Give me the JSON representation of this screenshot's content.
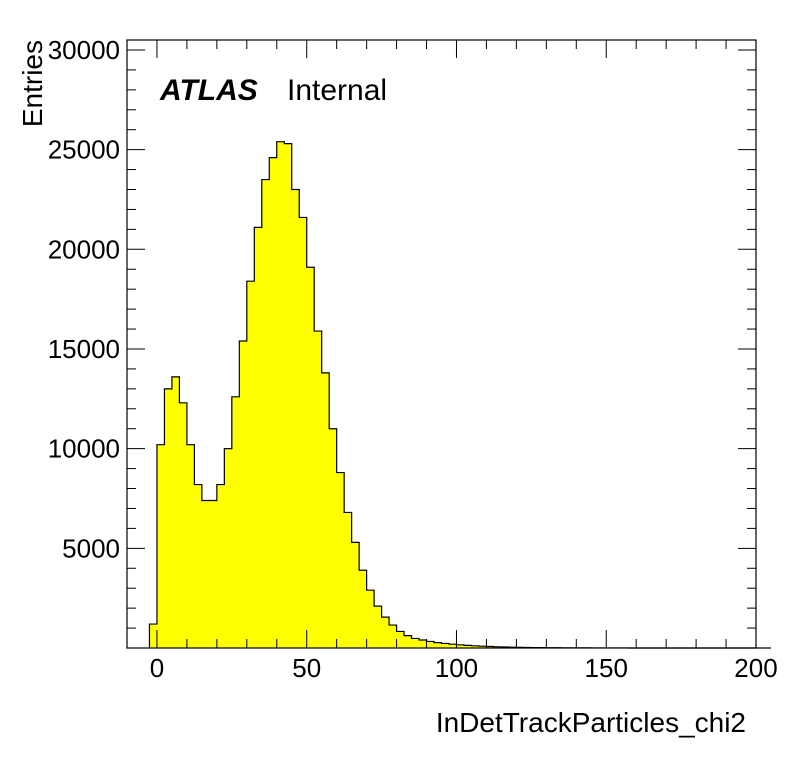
{
  "chart_data": {
    "type": "bar",
    "title": "",
    "xlabel": "InDetTrackParticles_chi2",
    "ylabel": "Entries",
    "annotation": {
      "experiment": "ATLAS",
      "status": "Internal"
    },
    "xlim": [
      -10,
      200
    ],
    "ylim": [
      0,
      30500
    ],
    "xticks": [
      0,
      50,
      100,
      150,
      200
    ],
    "yticks": [
      5000,
      10000,
      15000,
      20000,
      25000,
      30000
    ],
    "bin_width": 2.5,
    "bin_start": -2.5,
    "fill_color": "#ffff00",
    "line_color": "#000000",
    "grid": false,
    "legend": "none",
    "values": [
      1200,
      10200,
      13000,
      13600,
      12300,
      10200,
      8200,
      7400,
      7400,
      8200,
      10000,
      12600,
      15400,
      18400,
      21100,
      23500,
      24600,
      25400,
      25300,
      23000,
      21600,
      19100,
      15900,
      13800,
      11000,
      8800,
      6800,
      5300,
      3900,
      2900,
      2100,
      1550,
      1150,
      830,
      620,
      480,
      400,
      330,
      270,
      230,
      190,
      160,
      130,
      110,
      90,
      75,
      60,
      50,
      40,
      32,
      26,
      21,
      17,
      14,
      11,
      9,
      7,
      6,
      5,
      4,
      3,
      3,
      2,
      2,
      1,
      1,
      1,
      1,
      0,
      0,
      0,
      0,
      0,
      0,
      0,
      0,
      0,
      0,
      0,
      0,
      0,
      0,
      0
    ]
  }
}
